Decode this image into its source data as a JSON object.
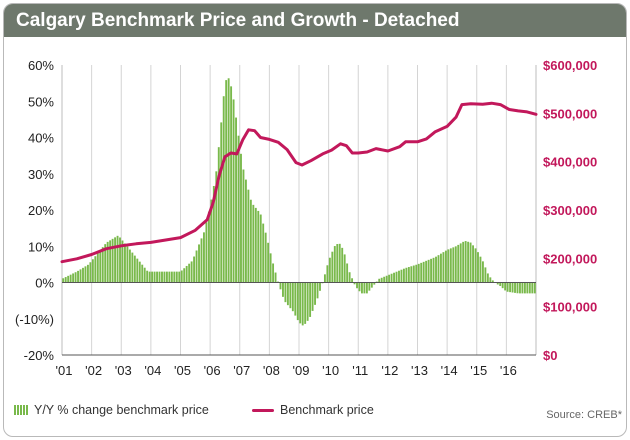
{
  "title": "Calgary Benchmark Price and Growth - Detached",
  "source": "Source: CREB*",
  "legend": {
    "bars": "Y/Y % change benchmark price",
    "line": "Benchmark price"
  },
  "colors": {
    "bars": "#79b94b",
    "line": "#c2185b",
    "right_axis_text": "#c2185b",
    "header": "#6e786c"
  },
  "chart_data": {
    "type": "bar+line",
    "x_tick_labels": [
      "'01",
      "'02",
      "'03",
      "'04",
      "'05",
      "'06",
      "'07",
      "'08",
      "'09",
      "'10",
      "'11",
      "'12",
      "'13",
      "'14",
      "'15",
      "'16"
    ],
    "x_range": [
      2001,
      2017
    ],
    "left_axis": {
      "ticks": [
        "60%",
        "50%",
        "40%",
        "30%",
        "20%",
        "10%",
        "0%",
        "(-10%)",
        "-20%"
      ],
      "range": [
        -20,
        60
      ]
    },
    "right_axis": {
      "ticks": [
        "$600,000",
        "$500,000",
        "$400,000",
        "$300,000",
        "$200,000",
        "$100,000",
        "$0"
      ],
      "range": [
        0,
        600000
      ]
    },
    "grid": "vertical",
    "series": [
      {
        "name": "Y/Y % change benchmark price",
        "kind": "bar",
        "points": [
          [
            2001.0,
            1
          ],
          [
            2001.5,
            3
          ],
          [
            2001.9,
            5
          ],
          [
            2002.2,
            8
          ],
          [
            2002.5,
            11
          ],
          [
            2002.9,
            13
          ],
          [
            2003.3,
            9
          ],
          [
            2003.6,
            6
          ],
          [
            2003.9,
            3
          ],
          [
            2004.5,
            3
          ],
          [
            2005.0,
            3
          ],
          [
            2005.4,
            6
          ],
          [
            2005.8,
            14
          ],
          [
            2006.0,
            21
          ],
          [
            2006.2,
            30
          ],
          [
            2006.35,
            42
          ],
          [
            2006.5,
            55
          ],
          [
            2006.6,
            57
          ],
          [
            2006.75,
            53
          ],
          [
            2006.9,
            44
          ],
          [
            2007.1,
            32
          ],
          [
            2007.4,
            22
          ],
          [
            2007.7,
            19
          ],
          [
            2007.9,
            13
          ],
          [
            2008.1,
            6
          ],
          [
            2008.3,
            0
          ],
          [
            2008.5,
            -5
          ],
          [
            2008.8,
            -8
          ],
          [
            2009.0,
            -11
          ],
          [
            2009.15,
            -12
          ],
          [
            2009.35,
            -10
          ],
          [
            2009.6,
            -5
          ],
          [
            2009.8,
            0
          ],
          [
            2010.0,
            6
          ],
          [
            2010.2,
            10
          ],
          [
            2010.35,
            11
          ],
          [
            2010.5,
            9
          ],
          [
            2010.7,
            3
          ],
          [
            2010.9,
            -1
          ],
          [
            2011.1,
            -3
          ],
          [
            2011.3,
            -3
          ],
          [
            2011.5,
            -1
          ],
          [
            2011.7,
            1
          ],
          [
            2012.0,
            2
          ],
          [
            2012.3,
            3
          ],
          [
            2012.6,
            4
          ],
          [
            2013.0,
            5
          ],
          [
            2013.3,
            6
          ],
          [
            2013.6,
            7
          ],
          [
            2014.0,
            9
          ],
          [
            2014.3,
            10
          ],
          [
            2014.6,
            11.5
          ],
          [
            2014.8,
            11
          ],
          [
            2015.0,
            9
          ],
          [
            2015.2,
            6
          ],
          [
            2015.4,
            2
          ],
          [
            2015.6,
            0
          ],
          [
            2015.8,
            -1
          ],
          [
            2016.0,
            -2.5
          ],
          [
            2016.4,
            -3
          ],
          [
            2016.8,
            -3
          ],
          [
            2017.0,
            -3
          ]
        ]
      },
      {
        "name": "Benchmark price",
        "kind": "line",
        "points": [
          [
            2001.0,
            193000
          ],
          [
            2001.5,
            199000
          ],
          [
            2002.0,
            208000
          ],
          [
            2002.5,
            220000
          ],
          [
            2003.0,
            226000
          ],
          [
            2003.5,
            230000
          ],
          [
            2004.0,
            233000
          ],
          [
            2004.5,
            238000
          ],
          [
            2005.0,
            243000
          ],
          [
            2005.5,
            258000
          ],
          [
            2005.9,
            280000
          ],
          [
            2006.1,
            315000
          ],
          [
            2006.3,
            370000
          ],
          [
            2006.5,
            410000
          ],
          [
            2006.7,
            418000
          ],
          [
            2006.9,
            416000
          ],
          [
            2007.1,
            445000
          ],
          [
            2007.3,
            466000
          ],
          [
            2007.5,
            464000
          ],
          [
            2007.7,
            450000
          ],
          [
            2008.0,
            446000
          ],
          [
            2008.3,
            440000
          ],
          [
            2008.6,
            425000
          ],
          [
            2008.9,
            398000
          ],
          [
            2009.1,
            393000
          ],
          [
            2009.4,
            402000
          ],
          [
            2009.8,
            416000
          ],
          [
            2010.1,
            424000
          ],
          [
            2010.4,
            437000
          ],
          [
            2010.6,
            433000
          ],
          [
            2010.8,
            418000
          ],
          [
            2011.0,
            418000
          ],
          [
            2011.3,
            420000
          ],
          [
            2011.6,
            427000
          ],
          [
            2012.0,
            422000
          ],
          [
            2012.4,
            431000
          ],
          [
            2012.6,
            441000
          ],
          [
            2013.0,
            441000
          ],
          [
            2013.3,
            447000
          ],
          [
            2013.6,
            462000
          ],
          [
            2014.0,
            473000
          ],
          [
            2014.3,
            492000
          ],
          [
            2014.5,
            518000
          ],
          [
            2014.8,
            520000
          ],
          [
            2015.2,
            519000
          ],
          [
            2015.5,
            521000
          ],
          [
            2015.8,
            518000
          ],
          [
            2016.1,
            508000
          ],
          [
            2016.4,
            505000
          ],
          [
            2016.7,
            503000
          ],
          [
            2017.0,
            498000
          ]
        ]
      }
    ]
  }
}
